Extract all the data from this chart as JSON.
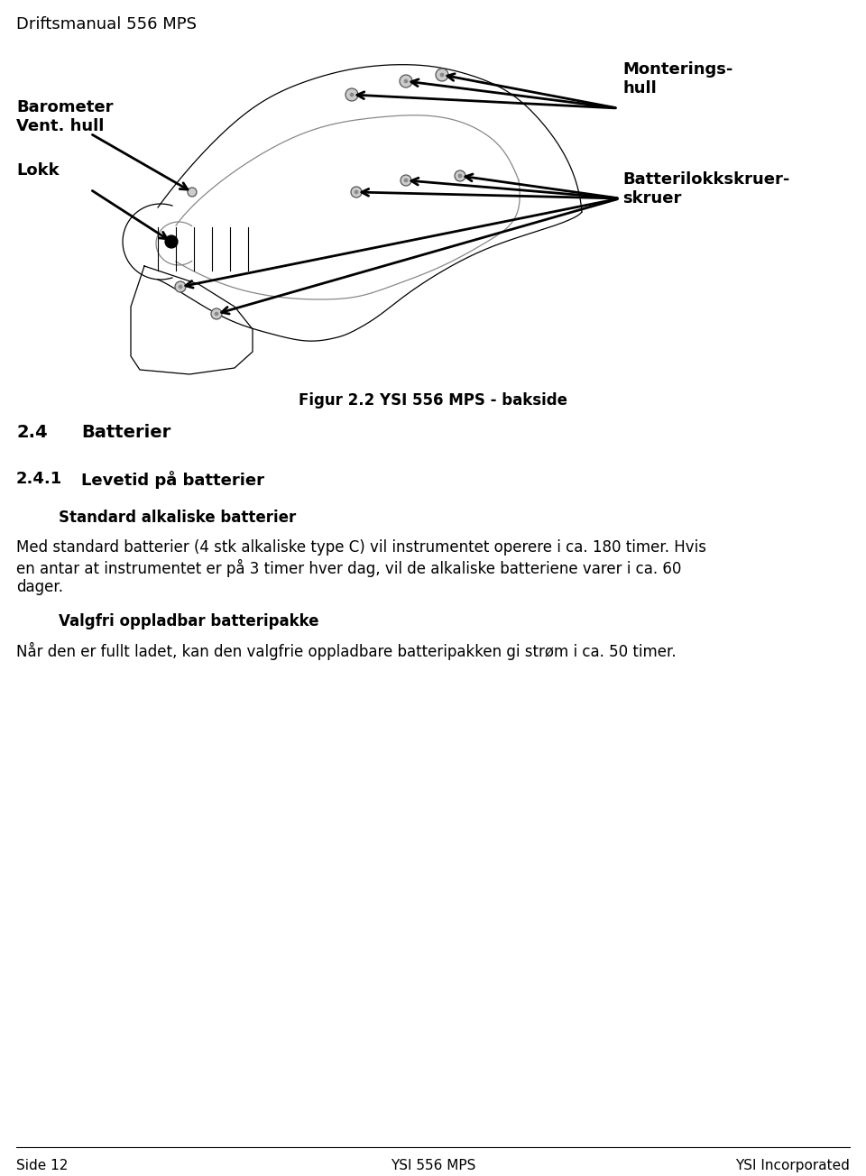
{
  "header_text": "Driftsmanual 556 MPS",
  "monterings_hull_text": "Monterings-\nhull",
  "lokk_text": "Lokk",
  "barometer_text": "Barometer\nVent. hull",
  "batterilokkskruer_text": "Batterilokkskruer-\nskruer",
  "batterilokkskruer_line1": "Batterilokkskruer-",
  "batterilokkskruer_line2": "skruer",
  "figur_text": "Figur 2.2 YSI 556 MPS - bakside",
  "section_2_4": "2.4    Batterier",
  "section_2_4_1": "2.4.1   Levetid på batterier",
  "subsection_standard": "Standard alkaliske batterier",
  "para1_line1": "Med standard batterier (4 stk alkaliske type C) vil instrumentet operere i ca. 180 timer. Hvis",
  "para1_line2": "en antar at instrumentet er på 3 timer hver dag, vil de alkaliske batteriene varer i ca. 60",
  "para1_line3": "dager.",
  "subsection_valgfri": "Valgfri oppladbar batteripakke",
  "para2": "Når den er fullt ladet, kan den valgfrie oppladbare batteripakken gi strøm i ca. 50 timer.",
  "footer_left": "Side 12",
  "footer_center": "YSI 556 MPS",
  "footer_right": "YSI Incorporated",
  "bg_color": "#ffffff",
  "text_color": "#000000"
}
